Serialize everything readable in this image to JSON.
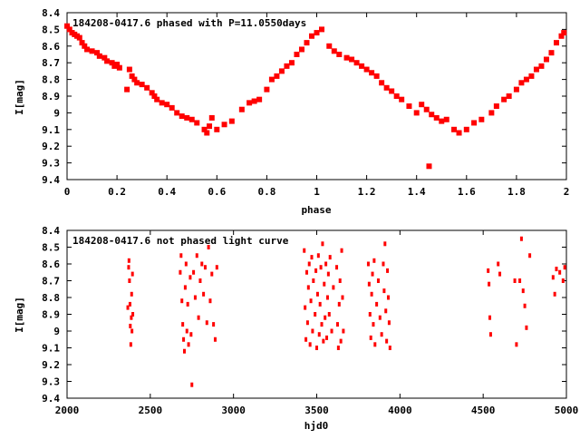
{
  "chart_data": [
    {
      "type": "scatter",
      "title": "184208-0417.6 phased with P=11.0550days",
      "xlabel": "phase",
      "ylabel": "I[mag]",
      "xlim": [
        0,
        2
      ],
      "ylim": [
        8.4,
        9.4
      ],
      "y_inverted": true,
      "x_ticks": [
        0,
        0.2,
        0.4,
        0.6,
        0.8,
        1,
        1.2,
        1.4,
        1.6,
        1.8,
        2
      ],
      "x_tick_labels": [
        "0",
        "0.2",
        "0.4",
        "0.6",
        "0.8",
        "1",
        "1.2",
        "1.4",
        "1.6",
        "1.8",
        "2"
      ],
      "y_ticks": [
        8.4,
        8.5,
        8.6,
        8.7,
        8.8,
        8.9,
        9.0,
        9.1,
        9.2,
        9.3,
        9.4
      ],
      "y_tick_labels": [
        "8.4",
        "8.5",
        "8.6",
        "8.7",
        "8.8",
        "8.9",
        "9",
        "9.1",
        "9.2",
        "9.3",
        "9.4"
      ],
      "marker_color": "#ff0000",
      "points": [
        [
          0.0,
          8.48
        ],
        [
          0.01,
          8.5
        ],
        [
          0.02,
          8.52
        ],
        [
          0.03,
          8.53
        ],
        [
          0.04,
          8.54
        ],
        [
          0.05,
          8.55
        ],
        [
          0.06,
          8.58
        ],
        [
          0.07,
          8.6
        ],
        [
          0.08,
          8.62
        ],
        [
          0.1,
          8.63
        ],
        [
          0.12,
          8.64
        ],
        [
          0.13,
          8.66
        ],
        [
          0.15,
          8.67
        ],
        [
          0.16,
          8.69
        ],
        [
          0.18,
          8.7
        ],
        [
          0.19,
          8.72
        ],
        [
          0.2,
          8.71
        ],
        [
          0.21,
          8.73
        ],
        [
          0.24,
          8.86
        ],
        [
          0.25,
          8.74
        ],
        [
          0.26,
          8.78
        ],
        [
          0.27,
          8.8
        ],
        [
          0.28,
          8.82
        ],
        [
          0.3,
          8.83
        ],
        [
          0.32,
          8.85
        ],
        [
          0.34,
          8.88
        ],
        [
          0.35,
          8.9
        ],
        [
          0.36,
          8.92
        ],
        [
          0.38,
          8.94
        ],
        [
          0.4,
          8.95
        ],
        [
          0.42,
          8.97
        ],
        [
          0.44,
          9.0
        ],
        [
          0.46,
          9.02
        ],
        [
          0.48,
          9.03
        ],
        [
          0.5,
          9.04
        ],
        [
          0.52,
          9.06
        ],
        [
          0.55,
          9.1
        ],
        [
          0.56,
          9.12
        ],
        [
          0.57,
          9.08
        ],
        [
          0.58,
          9.03
        ],
        [
          0.6,
          9.1
        ],
        [
          0.63,
          9.07
        ],
        [
          0.66,
          9.05
        ],
        [
          0.7,
          8.98
        ],
        [
          0.73,
          8.94
        ],
        [
          0.75,
          8.93
        ],
        [
          0.77,
          8.92
        ],
        [
          0.8,
          8.86
        ],
        [
          0.82,
          8.8
        ],
        [
          0.84,
          8.78
        ],
        [
          0.86,
          8.75
        ],
        [
          0.88,
          8.72
        ],
        [
          0.9,
          8.7
        ],
        [
          0.92,
          8.65
        ],
        [
          0.94,
          8.62
        ],
        [
          0.96,
          8.58
        ],
        [
          0.98,
          8.54
        ],
        [
          1.0,
          8.52
        ],
        [
          1.02,
          8.5
        ],
        [
          1.05,
          8.6
        ],
        [
          1.07,
          8.63
        ],
        [
          1.09,
          8.65
        ],
        [
          1.12,
          8.67
        ],
        [
          1.14,
          8.68
        ],
        [
          1.16,
          8.7
        ],
        [
          1.18,
          8.72
        ],
        [
          1.2,
          8.74
        ],
        [
          1.22,
          8.76
        ],
        [
          1.24,
          8.78
        ],
        [
          1.26,
          8.82
        ],
        [
          1.28,
          8.85
        ],
        [
          1.3,
          8.87
        ],
        [
          1.32,
          8.9
        ],
        [
          1.34,
          8.92
        ],
        [
          1.37,
          8.96
        ],
        [
          1.4,
          9.0
        ],
        [
          1.42,
          8.95
        ],
        [
          1.44,
          8.98
        ],
        [
          1.45,
          9.32
        ],
        [
          1.46,
          9.01
        ],
        [
          1.48,
          9.03
        ],
        [
          1.5,
          9.05
        ],
        [
          1.52,
          9.04
        ],
        [
          1.55,
          9.1
        ],
        [
          1.57,
          9.12
        ],
        [
          1.6,
          9.1
        ],
        [
          1.63,
          9.06
        ],
        [
          1.66,
          9.04
        ],
        [
          1.7,
          9.0
        ],
        [
          1.72,
          8.96
        ],
        [
          1.75,
          8.92
        ],
        [
          1.77,
          8.9
        ],
        [
          1.8,
          8.86
        ],
        [
          1.82,
          8.82
        ],
        [
          1.84,
          8.8
        ],
        [
          1.86,
          8.78
        ],
        [
          1.88,
          8.74
        ],
        [
          1.9,
          8.72
        ],
        [
          1.92,
          8.68
        ],
        [
          1.94,
          8.64
        ],
        [
          1.96,
          8.58
        ],
        [
          1.98,
          8.54
        ],
        [
          1.99,
          8.52
        ]
      ]
    },
    {
      "type": "scatter",
      "title": "184208-0417.6 not phased light curve",
      "xlabel": "hjd0",
      "ylabel": "I[mag]",
      "xlim": [
        2000,
        5000
      ],
      "ylim": [
        8.4,
        9.4
      ],
      "y_inverted": true,
      "x_ticks": [
        2000,
        2500,
        3000,
        3500,
        4000,
        4500,
        5000
      ],
      "x_tick_labels": [
        "2000",
        "2500",
        "3000",
        "3500",
        "4000",
        "4500",
        "5000"
      ],
      "y_ticks": [
        8.4,
        8.5,
        8.6,
        8.7,
        8.8,
        8.9,
        9.0,
        9.1,
        9.2,
        9.3,
        9.4
      ],
      "y_tick_labels": [
        "8.4",
        "8.5",
        "8.6",
        "8.7",
        "8.8",
        "8.9",
        "9",
        "9.1",
        "9.2",
        "9.3",
        "9.4"
      ],
      "marker_color": "#ff0000",
      "points": [
        [
          2365,
          8.86
        ],
        [
          2370,
          8.62
        ],
        [
          2372,
          8.58
        ],
        [
          2375,
          8.7
        ],
        [
          2378,
          8.84
        ],
        [
          2380,
          8.97
        ],
        [
          2383,
          9.08
        ],
        [
          2386,
          8.92
        ],
        [
          2388,
          8.78
        ],
        [
          2390,
          9.0
        ],
        [
          2393,
          8.66
        ],
        [
          2395,
          8.9
        ],
        [
          2680,
          8.65
        ],
        [
          2685,
          8.55
        ],
        [
          2690,
          8.82
        ],
        [
          2695,
          8.96
        ],
        [
          2700,
          9.05
        ],
        [
          2705,
          9.12
        ],
        [
          2710,
          8.74
        ],
        [
          2715,
          8.6
        ],
        [
          2720,
          9.0
        ],
        [
          2725,
          8.84
        ],
        [
          2730,
          9.08
        ],
        [
          2740,
          8.68
        ],
        [
          2745,
          9.02
        ],
        [
          2750,
          9.32
        ],
        [
          2760,
          8.65
        ],
        [
          2770,
          8.8
        ],
        [
          2780,
          8.55
        ],
        [
          2790,
          8.92
        ],
        [
          2800,
          8.7
        ],
        [
          2810,
          8.6
        ],
        [
          2820,
          8.78
        ],
        [
          2830,
          8.62
        ],
        [
          2840,
          8.95
        ],
        [
          2850,
          8.5
        ],
        [
          2860,
          8.82
        ],
        [
          2870,
          8.66
        ],
        [
          2880,
          8.96
        ],
        [
          2890,
          9.05
        ],
        [
          2900,
          8.62
        ],
        [
          3425,
          8.52
        ],
        [
          3430,
          8.86
        ],
        [
          3435,
          9.05
        ],
        [
          3440,
          8.65
        ],
        [
          3445,
          8.95
        ],
        [
          3450,
          8.74
        ],
        [
          3455,
          8.6
        ],
        [
          3460,
          9.08
        ],
        [
          3465,
          8.82
        ],
        [
          3470,
          8.56
        ],
        [
          3475,
          9.0
        ],
        [
          3480,
          8.7
        ],
        [
          3490,
          8.9
        ],
        [
          3495,
          8.64
        ],
        [
          3500,
          9.1
        ],
        [
          3505,
          8.78
        ],
        [
          3510,
          8.55
        ],
        [
          3515,
          9.02
        ],
        [
          3520,
          8.84
        ],
        [
          3525,
          8.62
        ],
        [
          3530,
          8.96
        ],
        [
          3535,
          8.48
        ],
        [
          3540,
          9.06
        ],
        [
          3545,
          8.72
        ],
        [
          3550,
          8.92
        ],
        [
          3555,
          8.6
        ],
        [
          3560,
          9.04
        ],
        [
          3565,
          8.8
        ],
        [
          3570,
          8.66
        ],
        [
          3575,
          8.9
        ],
        [
          3580,
          8.56
        ],
        [
          3590,
          9.0
        ],
        [
          3600,
          8.74
        ],
        [
          3620,
          8.62
        ],
        [
          3625,
          8.96
        ],
        [
          3630,
          9.1
        ],
        [
          3635,
          8.84
        ],
        [
          3640,
          8.7
        ],
        [
          3645,
          9.06
        ],
        [
          3650,
          8.52
        ],
        [
          3655,
          8.8
        ],
        [
          3660,
          9.0
        ],
        [
          3810,
          8.6
        ],
        [
          3815,
          8.72
        ],
        [
          3820,
          8.9
        ],
        [
          3825,
          9.04
        ],
        [
          3830,
          8.78
        ],
        [
          3835,
          8.66
        ],
        [
          3840,
          8.96
        ],
        [
          3845,
          8.58
        ],
        [
          3850,
          9.08
        ],
        [
          3860,
          8.84
        ],
        [
          3870,
          8.7
        ],
        [
          3880,
          8.92
        ],
        [
          3890,
          9.02
        ],
        [
          3900,
          8.6
        ],
        [
          3905,
          8.76
        ],
        [
          3910,
          8.48
        ],
        [
          3915,
          8.88
        ],
        [
          3920,
          9.06
        ],
        [
          3925,
          8.64
        ],
        [
          3930,
          8.8
        ],
        [
          3935,
          8.95
        ],
        [
          3940,
          9.1
        ],
        [
          4530,
          8.64
        ],
        [
          4535,
          8.72
        ],
        [
          4540,
          8.92
        ],
        [
          4545,
          9.02
        ],
        [
          4590,
          8.6
        ],
        [
          4600,
          8.66
        ],
        [
          4690,
          8.7
        ],
        [
          4700,
          9.08
        ],
        [
          4720,
          8.7
        ],
        [
          4730,
          8.45
        ],
        [
          4740,
          8.76
        ],
        [
          4750,
          8.85
        ],
        [
          4760,
          8.98
        ],
        [
          4780,
          8.55
        ],
        [
          4920,
          8.68
        ],
        [
          4930,
          8.78
        ],
        [
          4940,
          8.63
        ],
        [
          4960,
          8.65
        ],
        [
          4980,
          8.7
        ],
        [
          4990,
          8.62
        ]
      ]
    }
  ]
}
